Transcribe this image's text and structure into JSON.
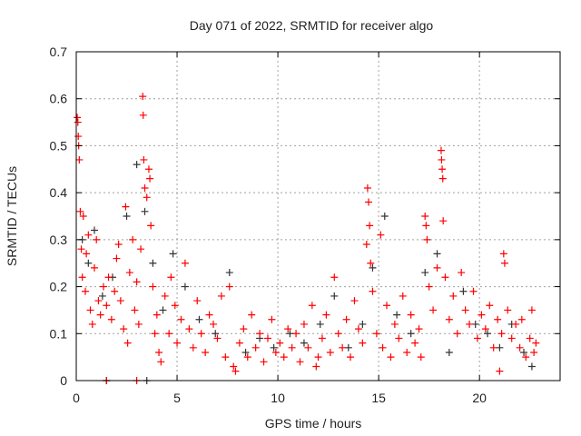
{
  "chart_data": {
    "type": "scatter",
    "title": "Day 071 of 2022, SRMTID for receiver algo",
    "xlabel": "GPS time / hours",
    "ylabel": "SRMTID / TECUs",
    "xlim": [
      0,
      24
    ],
    "ylim": [
      0,
      0.7
    ],
    "xticks": [
      0,
      5,
      10,
      15,
      20
    ],
    "xtick_labels": [
      "0",
      "5",
      "10",
      "15",
      "20"
    ],
    "yticks": [
      0,
      0.1,
      0.2,
      0.3,
      0.4,
      0.5,
      0.6,
      0.7
    ],
    "ytick_labels": [
      "0",
      "0.1",
      "0.2",
      "0.3",
      "0.4",
      "0.5",
      "0.6",
      "0.7"
    ],
    "grid": true,
    "marker": "+",
    "series": [
      {
        "name": "black",
        "color": "#333333",
        "points": [
          [
            0.3,
            0.3
          ],
          [
            0.6,
            0.25
          ],
          [
            0.9,
            0.32
          ],
          [
            1.3,
            0.18
          ],
          [
            1.8,
            0.22
          ],
          [
            2.5,
            0.35
          ],
          [
            3.0,
            0.46
          ],
          [
            3.4,
            0.36
          ],
          [
            3.8,
            0.25
          ],
          [
            4.3,
            0.15
          ],
          [
            4.8,
            0.27
          ],
          [
            5.4,
            0.2
          ],
          [
            6.1,
            0.13
          ],
          [
            6.9,
            0.1
          ],
          [
            7.6,
            0.23
          ],
          [
            8.4,
            0.06
          ],
          [
            9.1,
            0.09
          ],
          [
            9.8,
            0.07
          ],
          [
            10.6,
            0.1
          ],
          [
            11.3,
            0.08
          ],
          [
            12.1,
            0.12
          ],
          [
            12.8,
            0.18
          ],
          [
            13.5,
            0.07
          ],
          [
            14.2,
            0.12
          ],
          [
            14.7,
            0.24
          ],
          [
            15.3,
            0.35
          ],
          [
            15.9,
            0.14
          ],
          [
            16.6,
            0.1
          ],
          [
            17.3,
            0.23
          ],
          [
            17.9,
            0.27
          ],
          [
            18.5,
            0.06
          ],
          [
            19.2,
            0.19
          ],
          [
            19.8,
            0.12
          ],
          [
            20.4,
            0.1
          ],
          [
            21.0,
            0.07
          ],
          [
            21.6,
            0.12
          ],
          [
            22.2,
            0.06
          ],
          [
            22.6,
            0.03
          ],
          [
            1.5,
            0
          ],
          [
            3.5,
            0
          ]
        ]
      },
      {
        "name": "red",
        "color": "#ff0000",
        "points": [
          [
            0.05,
            0.56
          ],
          [
            0.08,
            0.55
          ],
          [
            0.1,
            0.52
          ],
          [
            0.12,
            0.5
          ],
          [
            0.15,
            0.47
          ],
          [
            0.2,
            0.36
          ],
          [
            0.25,
            0.28
          ],
          [
            0.3,
            0.22
          ],
          [
            0.35,
            0.35
          ],
          [
            0.45,
            0.19
          ],
          [
            0.5,
            0.27
          ],
          [
            0.6,
            0.31
          ],
          [
            0.7,
            0.15
          ],
          [
            0.8,
            0.12
          ],
          [
            0.9,
            0.24
          ],
          [
            1.0,
            0.3
          ],
          [
            1.1,
            0.17
          ],
          [
            1.2,
            0.14
          ],
          [
            1.35,
            0.2
          ],
          [
            1.5,
            0.16
          ],
          [
            1.6,
            0.22
          ],
          [
            1.75,
            0.13
          ],
          [
            1.9,
            0.19
          ],
          [
            2.0,
            0.26
          ],
          [
            2.1,
            0.29
          ],
          [
            2.2,
            0.17
          ],
          [
            2.35,
            0.11
          ],
          [
            2.45,
            0.37
          ],
          [
            2.55,
            0.08
          ],
          [
            2.65,
            0.23
          ],
          [
            2.8,
            0.3
          ],
          [
            2.9,
            0.15
          ],
          [
            3.0,
            0.21
          ],
          [
            3.1,
            0.12
          ],
          [
            3.2,
            0.28
          ],
          [
            3.3,
            0.605
          ],
          [
            3.32,
            0.565
          ],
          [
            3.35,
            0.47
          ],
          [
            3.4,
            0.41
          ],
          [
            3.5,
            0.39
          ],
          [
            3.6,
            0.45
          ],
          [
            3.65,
            0.43
          ],
          [
            3.7,
            0.33
          ],
          [
            3.8,
            0.2
          ],
          [
            3.9,
            0.1
          ],
          [
            4.0,
            0.14
          ],
          [
            4.1,
            0.06
          ],
          [
            4.2,
            0.04
          ],
          [
            4.4,
            0.18
          ],
          [
            4.6,
            0.1
          ],
          [
            4.7,
            0.22
          ],
          [
            4.9,
            0.16
          ],
          [
            5.0,
            0.08
          ],
          [
            5.2,
            0.13
          ],
          [
            5.4,
            0.25
          ],
          [
            5.6,
            0.11
          ],
          [
            5.8,
            0.07
          ],
          [
            6.0,
            0.17
          ],
          [
            6.2,
            0.1
          ],
          [
            6.4,
            0.06
          ],
          [
            6.6,
            0.14
          ],
          [
            6.8,
            0.12
          ],
          [
            7.0,
            0.09
          ],
          [
            7.2,
            0.18
          ],
          [
            7.4,
            0.05
          ],
          [
            7.6,
            0.2
          ],
          [
            7.8,
            0.03
          ],
          [
            7.9,
            0.02
          ],
          [
            8.1,
            0.08
          ],
          [
            8.3,
            0.11
          ],
          [
            8.5,
            0.05
          ],
          [
            8.7,
            0.14
          ],
          [
            8.9,
            0.07
          ],
          [
            9.1,
            0.1
          ],
          [
            9.3,
            0.04
          ],
          [
            9.5,
            0.09
          ],
          [
            9.7,
            0.13
          ],
          [
            9.9,
            0.06
          ],
          [
            10.1,
            0.08
          ],
          [
            10.3,
            0.05
          ],
          [
            10.5,
            0.11
          ],
          [
            10.7,
            0.07
          ],
          [
            10.9,
            0.1
          ],
          [
            11.1,
            0.04
          ],
          [
            11.3,
            0.12
          ],
          [
            11.5,
            0.07
          ],
          [
            11.7,
            0.16
          ],
          [
            11.9,
            0.03
          ],
          [
            12.0,
            0.05
          ],
          [
            12.2,
            0.09
          ],
          [
            12.4,
            0.14
          ],
          [
            12.6,
            0.06
          ],
          [
            12.8,
            0.22
          ],
          [
            13.0,
            0.1
          ],
          [
            13.2,
            0.07
          ],
          [
            13.4,
            0.13
          ],
          [
            13.6,
            0.05
          ],
          [
            13.8,
            0.17
          ],
          [
            14.0,
            0.11
          ],
          [
            14.2,
            0.08
          ],
          [
            14.4,
            0.29
          ],
          [
            14.45,
            0.41
          ],
          [
            14.5,
            0.38
          ],
          [
            14.55,
            0.33
          ],
          [
            14.6,
            0.25
          ],
          [
            14.7,
            0.19
          ],
          [
            14.9,
            0.1
          ],
          [
            15.1,
            0.31
          ],
          [
            15.2,
            0.07
          ],
          [
            15.4,
            0.16
          ],
          [
            15.6,
            0.05
          ],
          [
            15.8,
            0.12
          ],
          [
            16.0,
            0.09
          ],
          [
            16.2,
            0.18
          ],
          [
            16.4,
            0.06
          ],
          [
            16.6,
            0.14
          ],
          [
            16.8,
            0.08
          ],
          [
            17.0,
            0.11
          ],
          [
            17.1,
            0.05
          ],
          [
            17.3,
            0.35
          ],
          [
            17.35,
            0.33
          ],
          [
            17.4,
            0.3
          ],
          [
            17.5,
            0.2
          ],
          [
            17.7,
            0.15
          ],
          [
            17.9,
            0.24
          ],
          [
            18.1,
            0.49
          ],
          [
            18.12,
            0.47
          ],
          [
            18.15,
            0.45
          ],
          [
            18.18,
            0.43
          ],
          [
            18.2,
            0.34
          ],
          [
            18.3,
            0.22
          ],
          [
            18.5,
            0.13
          ],
          [
            18.7,
            0.18
          ],
          [
            18.9,
            0.1
          ],
          [
            19.1,
            0.23
          ],
          [
            19.3,
            0.15
          ],
          [
            19.5,
            0.12
          ],
          [
            19.7,
            0.19
          ],
          [
            19.9,
            0.09
          ],
          [
            20.1,
            0.14
          ],
          [
            20.3,
            0.11
          ],
          [
            20.5,
            0.16
          ],
          [
            20.7,
            0.07
          ],
          [
            20.9,
            0.13
          ],
          [
            21.0,
            0.02
          ],
          [
            21.1,
            0.1
          ],
          [
            21.2,
            0.27
          ],
          [
            21.25,
            0.25
          ],
          [
            21.4,
            0.15
          ],
          [
            21.6,
            0.09
          ],
          [
            21.8,
            0.12
          ],
          [
            22.0,
            0.07
          ],
          [
            22.1,
            0.13
          ],
          [
            22.3,
            0.05
          ],
          [
            22.5,
            0.09
          ],
          [
            22.6,
            0.15
          ],
          [
            22.7,
            0.06
          ],
          [
            22.8,
            0.08
          ],
          [
            1.5,
            0
          ],
          [
            3.0,
            0
          ]
        ]
      }
    ]
  }
}
